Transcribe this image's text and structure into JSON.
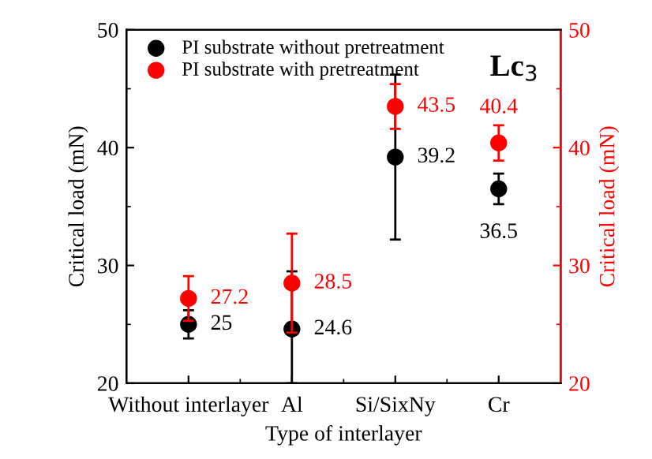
{
  "chart_data": {
    "type": "scatter",
    "xlabel": "Type of interlayer",
    "ylabel": "Critical load (mN)",
    "y2label": "Critical load (mN)",
    "categories": [
      "Without interlayer",
      "Al",
      "Si/SixNy",
      "Cr"
    ],
    "series": [
      {
        "name": "PI substrate without pretreatment",
        "color": "#000000",
        "values": [
          25,
          24.6,
          39.2,
          36.5
        ],
        "errors": [
          1.2,
          [
            20,
            29.5
          ],
          7,
          1.3
        ],
        "value_labels": [
          "25",
          "24.6",
          "39.2",
          "36.5"
        ]
      },
      {
        "name": "PI substrate with pretreatment",
        "color": "#ff0000",
        "axis": "y2",
        "values": [
          27.2,
          28.5,
          43.5,
          40.4
        ],
        "errors": [
          1.9,
          4.2,
          1.9,
          1.5
        ],
        "value_labels": [
          "27.2",
          "28.5",
          "43.5",
          "40.4"
        ]
      }
    ],
    "ylim": [
      20,
      50
    ],
    "yticks": [
      20,
      30,
      40,
      50
    ],
    "y2lim": [
      20,
      50
    ],
    "y2ticks": [
      20,
      30,
      40,
      50
    ],
    "annotations": [
      "Lc$_{3}$"
    ],
    "legend": "top left",
    "marker": "circle",
    "grid": false
  }
}
